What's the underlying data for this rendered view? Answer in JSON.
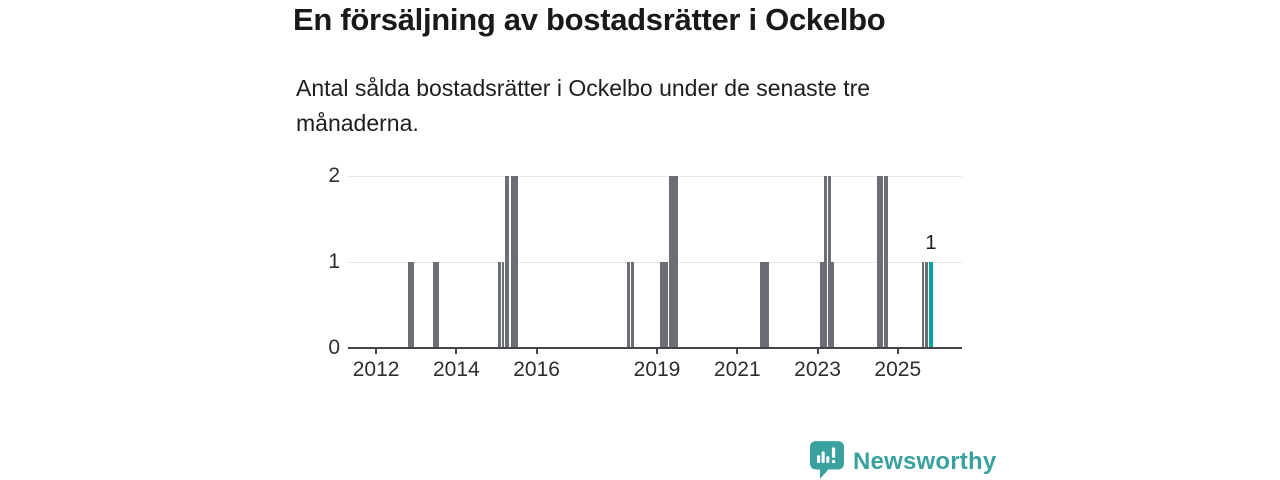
{
  "title": "En försäljning av bostadsrätter i Ockelbo",
  "subtitle": "Antal sålda bostadsrätter i Ockelbo under de senaste tre månaderna.",
  "colors": {
    "bar": "#6b6e75",
    "accent": "#00a49e",
    "grid": "#e9e9e9",
    "axis": "#42454a",
    "logo": "#3ba19e"
  },
  "logo": {
    "text": "Newsworthy"
  },
  "chart_data": {
    "type": "bar",
    "title": "En försäljning av bostadsrätter i Ockelbo",
    "subtitle": "Antal sålda bostadsrätter i Ockelbo under de senaste tre månaderna.",
    "xlabel": "",
    "ylabel": "",
    "ylim": [
      0,
      2
    ],
    "yticks": [
      0,
      1,
      2
    ],
    "xticks": [
      2012,
      2014,
      2016,
      2019,
      2021,
      2023,
      2025
    ],
    "x_domain": [
      2011.3,
      2026.6
    ],
    "grid": "horizontal-only",
    "legend": "none",
    "last_value_label": "1",
    "bars": [
      {
        "period": "2012-11",
        "start": 2012.8,
        "end": 2012.95,
        "value": 1
      },
      {
        "period": "2013-07",
        "start": 2013.425,
        "end": 2013.575,
        "value": 1
      },
      {
        "period": "2015-01",
        "start": 2015.05,
        "end": 2015.113,
        "value": 1
      },
      {
        "period": "2015-02",
        "start": 2015.138,
        "end": 2015.188,
        "value": 1
      },
      {
        "period": "2015-04",
        "start": 2015.213,
        "end": 2015.3,
        "value": 2
      },
      {
        "period": "2015-06",
        "start": 2015.35,
        "end": 2015.525,
        "value": 2
      },
      {
        "period": "2018-04",
        "start": 2018.25,
        "end": 2018.338,
        "value": 1
      },
      {
        "period": "2018-05",
        "start": 2018.363,
        "end": 2018.425,
        "value": 1
      },
      {
        "period": "2019-02",
        "start": 2019.075,
        "end": 2019.138,
        "value": 1
      },
      {
        "period": "2019-03",
        "start": 2019.15,
        "end": 2019.213,
        "value": 1
      },
      {
        "period": "2019-04",
        "start": 2019.225,
        "end": 2019.275,
        "value": 1
      },
      {
        "period": "2019-05",
        "start": 2019.3,
        "end": 2019.363,
        "value": 2
      },
      {
        "period": "2019-06",
        "start": 2019.375,
        "end": 2019.438,
        "value": 2
      },
      {
        "period": "2019-07",
        "start": 2019.45,
        "end": 2019.525,
        "value": 2
      },
      {
        "period": "2021-08",
        "start": 2021.575,
        "end": 2021.638,
        "value": 1
      },
      {
        "period": "2021-09",
        "start": 2021.65,
        "end": 2021.713,
        "value": 1
      },
      {
        "period": "2021-10",
        "start": 2021.725,
        "end": 2021.8,
        "value": 1
      },
      {
        "period": "2023-02",
        "start": 2023.05,
        "end": 2023.15,
        "value": 1
      },
      {
        "period": "2023-03",
        "start": 2023.163,
        "end": 2023.238,
        "value": 2
      },
      {
        "period": "2023-04",
        "start": 2023.25,
        "end": 2023.325,
        "value": 2
      },
      {
        "period": "2023-05",
        "start": 2023.338,
        "end": 2023.4,
        "value": 1
      },
      {
        "period": "2024-07",
        "start": 2024.475,
        "end": 2024.55,
        "value": 2
      },
      {
        "period": "2024-08",
        "start": 2024.563,
        "end": 2024.638,
        "value": 2
      },
      {
        "period": "2024-09",
        "start": 2024.65,
        "end": 2024.75,
        "value": 2
      },
      {
        "period": "2025-08",
        "start": 2025.6,
        "end": 2025.663,
        "value": 1
      },
      {
        "period": "2025-09",
        "start": 2025.688,
        "end": 2025.75,
        "value": 1
      },
      {
        "period": "2025-10",
        "start": 2025.775,
        "end": 2025.875,
        "value": 1,
        "accent": true,
        "label": "1"
      }
    ]
  }
}
